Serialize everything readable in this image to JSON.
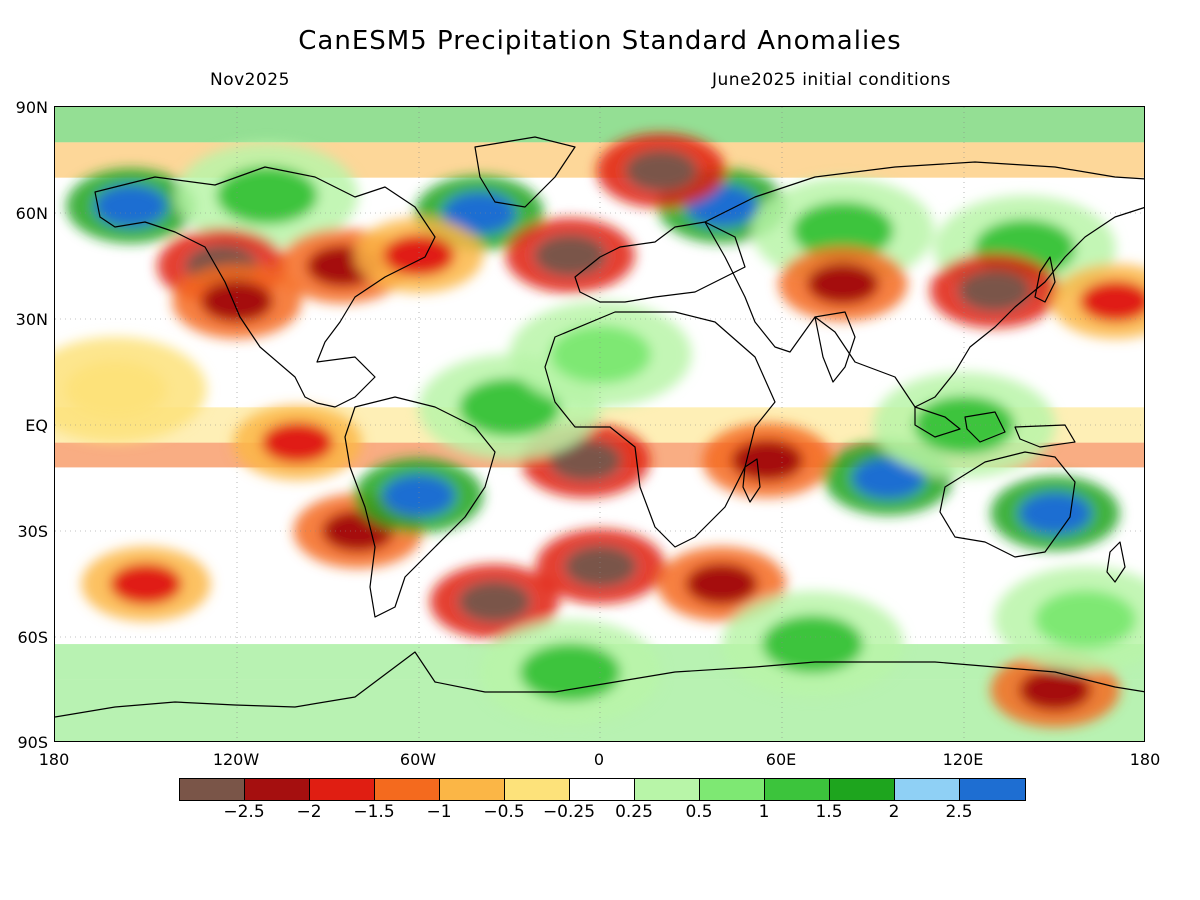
{
  "title": "CanESM5 Precipitation Standard Anomalies",
  "subtitle_left": "Nov2025",
  "subtitle_right": "June2025 initial conditions",
  "lat_labels": [
    "90N",
    "60N",
    "30N",
    "EQ",
    "30S",
    "60S",
    "90S"
  ],
  "lon_labels": [
    "180",
    "120W",
    "60W",
    "0",
    "60E",
    "120E",
    "180"
  ],
  "colorbar": {
    "colors": [
      "#7a5548",
      "#a50f0f",
      "#e01e12",
      "#f46a1e",
      "#fbb646",
      "#fde27a",
      "#ffffff",
      "#b8f5a8",
      "#7ee873",
      "#3cc43c",
      "#1ea51e",
      "#8fd0f5",
      "#1e6ed2"
    ],
    "labels": [
      "−2.5",
      "−2",
      "−1.5",
      "−1",
      "−0.5",
      "−0.25",
      "0.25",
      "0.5",
      "1",
      "1.5",
      "2",
      "2.5"
    ]
  },
  "map_data": {
    "projection": "equirectangular",
    "lon_range": [
      -180,
      180
    ],
    "lat_range": [
      -90,
      90
    ],
    "variable": "precipitation standard anomaly",
    "anomaly_blobs": [
      {
        "lon": -155,
        "lat": 62,
        "level": 12
      },
      {
        "lon": -110,
        "lat": 65,
        "level": 9
      },
      {
        "lon": -40,
        "lat": 60,
        "level": 12
      },
      {
        "lon": 40,
        "lat": 62,
        "level": 12
      },
      {
        "lon": 80,
        "lat": 55,
        "level": 9
      },
      {
        "lon": 140,
        "lat": 50,
        "level": 9
      },
      {
        "lon": -125,
        "lat": 45,
        "level": 0
      },
      {
        "lon": -120,
        "lat": 35,
        "level": 1
      },
      {
        "lon": -85,
        "lat": 45,
        "level": 1
      },
      {
        "lon": -60,
        "lat": 48,
        "level": 2
      },
      {
        "lon": -10,
        "lat": 48,
        "level": 0
      },
      {
        "lon": 20,
        "lat": 72,
        "level": 0
      },
      {
        "lon": 80,
        "lat": 40,
        "level": 1
      },
      {
        "lon": 130,
        "lat": 38,
        "level": 0
      },
      {
        "lon": 170,
        "lat": 35,
        "level": 2
      },
      {
        "lon": -100,
        "lat": -5,
        "level": 2
      },
      {
        "lon": -80,
        "lat": -30,
        "level": 1
      },
      {
        "lon": -5,
        "lat": -10,
        "level": 0
      },
      {
        "lon": 55,
        "lat": -10,
        "level": 1
      },
      {
        "lon": 0,
        "lat": -40,
        "level": 0
      },
      {
        "lon": -35,
        "lat": -50,
        "level": 0
      },
      {
        "lon": 40,
        "lat": -45,
        "level": 1
      },
      {
        "lon": 150,
        "lat": -75,
        "level": 1
      },
      {
        "lon": -60,
        "lat": -20,
        "level": 12
      },
      {
        "lon": 95,
        "lat": -15,
        "level": 12
      },
      {
        "lon": 150,
        "lat": -25,
        "level": 12
      },
      {
        "lon": 120,
        "lat": 0,
        "level": 9
      },
      {
        "lon": -30,
        "lat": 5,
        "level": 9
      },
      {
        "lon": 70,
        "lat": -62,
        "level": 9
      },
      {
        "lon": -10,
        "lat": -70,
        "level": 9
      },
      {
        "lon": 0,
        "lat": 20,
        "level": 8
      },
      {
        "lon": -160,
        "lat": 10,
        "level": 5
      },
      {
        "lon": 160,
        "lat": -55,
        "level": 8
      },
      {
        "lon": -150,
        "lat": -45,
        "level": 2
      }
    ]
  }
}
